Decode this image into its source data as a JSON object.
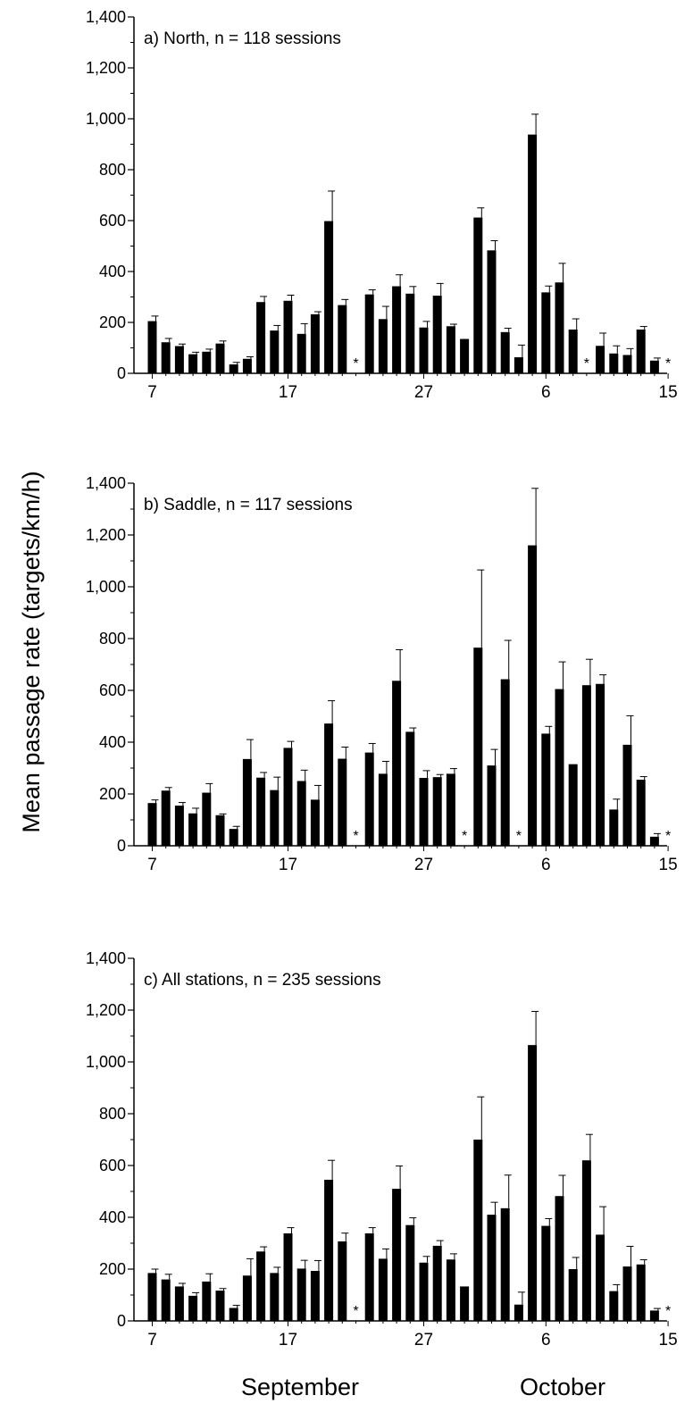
{
  "figure": {
    "ylabel": "Mean passage rate (targets/km/h)",
    "months": [
      "September",
      "October"
    ]
  },
  "chart_data": [
    {
      "type": "bar",
      "title": "a) North, n = 118 sessions",
      "ylim": [
        0,
        1400
      ],
      "yticks": [
        "0",
        "200",
        "400",
        "600",
        "800",
        "1,000",
        "1,200",
        "1,400"
      ],
      "xtick_labels": [
        "7",
        "17",
        "27",
        "6",
        "15"
      ],
      "x": [
        "Sep 7",
        "Sep 8",
        "Sep 9",
        "Sep 10",
        "Sep 11",
        "Sep 12",
        "Sep 13",
        "Sep 14",
        "Sep 15",
        "Sep 16",
        "Sep 17",
        "Sep 18",
        "Sep 19",
        "Sep 20",
        "Sep 21",
        "Sep 22",
        "Sep 23",
        "Sep 24",
        "Sep 25",
        "Sep 26",
        "Sep 27",
        "Sep 28",
        "Sep 29",
        "Sep 30",
        "Oct 1",
        "Oct 2",
        "Oct 3",
        "Oct 4",
        "Oct 5",
        "Oct 6",
        "Oct 7",
        "Oct 8",
        "Oct 9",
        "Oct 10",
        "Oct 11",
        "Oct 12",
        "Oct 13",
        "Oct 14",
        "Oct 15"
      ],
      "values": [
        205,
        122,
        107,
        75,
        85,
        117,
        35,
        57,
        280,
        168,
        285,
        155,
        232,
        598,
        268,
        null,
        310,
        213,
        342,
        313,
        180,
        305,
        185,
        135,
        612,
        483,
        162,
        63,
        938,
        318,
        357,
        172,
        null,
        108,
        78,
        72,
        172,
        50,
        null
      ],
      "errors": [
        20,
        15,
        8,
        8,
        10,
        10,
        8,
        8,
        22,
        20,
        22,
        40,
        10,
        118,
        22,
        null,
        18,
        50,
        45,
        28,
        24,
        48,
        8,
        0,
        38,
        38,
        15,
        48,
        80,
        25,
        75,
        42,
        null,
        50,
        30,
        25,
        12,
        10,
        null
      ],
      "annotations": [
        "*",
        "*",
        "*"
      ]
    },
    {
      "type": "bar",
      "title": "b) Saddle, n = 117 sessions",
      "ylim": [
        0,
        1400
      ],
      "yticks": [
        "0",
        "200",
        "400",
        "600",
        "800",
        "1,000",
        "1,200",
        "1,400"
      ],
      "xtick_labels": [
        "7",
        "17",
        "27",
        "6",
        "15"
      ],
      "x": [
        "Sep 7",
        "Sep 8",
        "Sep 9",
        "Sep 10",
        "Sep 11",
        "Sep 12",
        "Sep 13",
        "Sep 14",
        "Sep 15",
        "Sep 16",
        "Sep 17",
        "Sep 18",
        "Sep 19",
        "Sep 20",
        "Sep 21",
        "Sep 22",
        "Sep 23",
        "Sep 24",
        "Sep 25",
        "Sep 26",
        "Sep 27",
        "Sep 28",
        "Sep 29",
        "Sep 30",
        "Oct 1",
        "Oct 2",
        "Oct 3",
        "Oct 4",
        "Oct 5",
        "Oct 6",
        "Oct 7",
        "Oct 8",
        "Oct 9",
        "Oct 10",
        "Oct 11",
        "Oct 12",
        "Oct 13",
        "Oct 14",
        "Oct 15"
      ],
      "values": [
        165,
        213,
        155,
        125,
        205,
        118,
        65,
        335,
        263,
        215,
        378,
        250,
        178,
        472,
        336,
        null,
        360,
        278,
        637,
        440,
        262,
        265,
        278,
        null,
        765,
        310,
        643,
        null,
        1160,
        433,
        605,
        315,
        620,
        625,
        140,
        390,
        255,
        35,
        null
      ],
      "errors": [
        12,
        12,
        12,
        20,
        35,
        5,
        10,
        75,
        20,
        50,
        25,
        42,
        55,
        88,
        45,
        null,
        35,
        48,
        120,
        15,
        28,
        10,
        20,
        null,
        300,
        62,
        150,
        null,
        220,
        28,
        105,
        0,
        100,
        35,
        40,
        112,
        12,
        12,
        null
      ],
      "annotations": [
        "*",
        "*",
        "*",
        "*"
      ]
    },
    {
      "type": "bar",
      "title": "c) All stations, n = 235 sessions",
      "ylim": [
        0,
        1400
      ],
      "yticks": [
        "0",
        "200",
        "400",
        "600",
        "800",
        "1,000",
        "1,200",
        "1,400"
      ],
      "xtick_labels": [
        "7",
        "17",
        "27",
        "6",
        "15"
      ],
      "x": [
        "Sep 7",
        "Sep 8",
        "Sep 9",
        "Sep 10",
        "Sep 11",
        "Sep 12",
        "Sep 13",
        "Sep 14",
        "Sep 15",
        "Sep 16",
        "Sep 17",
        "Sep 18",
        "Sep 19",
        "Sep 20",
        "Sep 21",
        "Sep 22",
        "Sep 23",
        "Sep 24",
        "Sep 25",
        "Sep 26",
        "Sep 27",
        "Sep 28",
        "Sep 29",
        "Sep 30",
        "Oct 1",
        "Oct 2",
        "Oct 3",
        "Oct 4",
        "Oct 5",
        "Oct 6",
        "Oct 7",
        "Oct 8",
        "Oct 9",
        "Oct 10",
        "Oct 11",
        "Oct 12",
        "Oct 13",
        "Oct 14",
        "Oct 15"
      ],
      "values": [
        185,
        160,
        133,
        97,
        152,
        117,
        50,
        175,
        268,
        185,
        338,
        202,
        193,
        545,
        307,
        null,
        338,
        240,
        510,
        370,
        225,
        290,
        237,
        133,
        700,
        410,
        435,
        63,
        1065,
        367,
        482,
        200,
        620,
        333,
        115,
        210,
        218,
        40,
        null
      ],
      "errors": [
        15,
        20,
        12,
        12,
        30,
        8,
        10,
        65,
        18,
        22,
        22,
        32,
        40,
        75,
        32,
        null,
        22,
        38,
        88,
        28,
        24,
        20,
        22,
        0,
        165,
        48,
        128,
        48,
        130,
        28,
        80,
        45,
        100,
        108,
        25,
        78,
        18,
        8,
        null
      ],
      "annotations": [
        "*",
        "*"
      ]
    }
  ]
}
